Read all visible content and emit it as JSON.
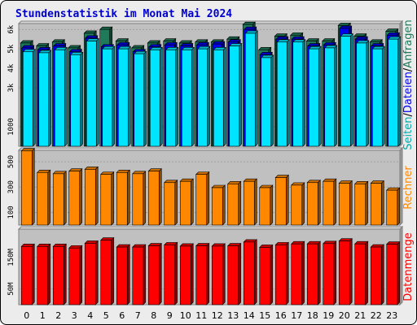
{
  "title": "Stundenstatistik im Monat Mai 2024",
  "colors": {
    "title": "#0000cc",
    "plot_bg": "#c0c0c0",
    "seiten": "#1f7a5a",
    "dateien": "#0000ee",
    "anfragen": "#00e5ff",
    "rechner": "#ff8800",
    "datenmenge": "#ff0000"
  },
  "chart_data": [
    {
      "type": "bar",
      "title": "",
      "x": [
        0,
        1,
        2,
        3,
        4,
        5,
        6,
        7,
        8,
        9,
        10,
        11,
        12,
        13,
        14,
        15,
        16,
        17,
        18,
        19,
        20,
        21,
        22,
        23
      ],
      "ylim": [
        0,
        6300
      ],
      "yticks": [
        1000,
        3000,
        4000,
        5000,
        6000
      ],
      "ytick_labels": [
        "1000",
        "3k",
        "4k",
        "5k",
        "6k"
      ],
      "ylabel_parts": [
        {
          "text": "Seiten",
          "color": "#00aaaa"
        },
        {
          "text": "/",
          "color": "#000000"
        },
        {
          "text": "Dateien",
          "color": "#0000ee"
        },
        {
          "text": "/",
          "color": "#000000"
        },
        {
          "text": "Anfragen",
          "color": "#1f7a5a"
        }
      ],
      "series": [
        {
          "name": "Seiten",
          "values": [
            5300,
            5150,
            5350,
            5050,
            5800,
            6000,
            5400,
            5050,
            5300,
            5400,
            5300,
            5350,
            5350,
            5500,
            6250,
            4950,
            5650,
            5700,
            5400,
            5400,
            6200,
            5650,
            5350,
            5900
          ]
        },
        {
          "name": "Dateien",
          "values": [
            5050,
            4950,
            5150,
            4850,
            5550,
            5100,
            5200,
            4850,
            5100,
            5200,
            5150,
            5200,
            5250,
            5350,
            6000,
            4700,
            5500,
            5500,
            5150,
            5200,
            6050,
            5500,
            5150,
            5700
          ]
        },
        {
          "name": "Anfragen",
          "values": [
            4850,
            4800,
            4950,
            4700,
            5400,
            5000,
            5000,
            4750,
            4950,
            4950,
            4950,
            5000,
            4950,
            5150,
            5800,
            4550,
            5350,
            5350,
            5000,
            5050,
            5650,
            5300,
            5000,
            5500
          ]
        }
      ]
    },
    {
      "type": "bar",
      "title": "",
      "x": [
        0,
        1,
        2,
        3,
        4,
        5,
        6,
        7,
        8,
        9,
        10,
        11,
        12,
        13,
        14,
        15,
        16,
        17,
        18,
        19,
        20,
        21,
        22,
        23
      ],
      "ylim": [
        0,
        590
      ],
      "yticks": [
        100,
        300,
        500
      ],
      "ytick_labels": [
        "100",
        "300",
        "500"
      ],
      "ylabel": "Rechner",
      "series": [
        {
          "name": "Rechner",
          "values": [
            585,
            415,
            405,
            425,
            440,
            400,
            415,
            405,
            425,
            335,
            345,
            400,
            295,
            325,
            345,
            295,
            375,
            315,
            335,
            345,
            330,
            325,
            330,
            275
          ]
        }
      ]
    },
    {
      "type": "bar",
      "title": "",
      "x": [
        0,
        1,
        2,
        3,
        4,
        5,
        6,
        7,
        8,
        9,
        10,
        11,
        12,
        13,
        14,
        15,
        16,
        17,
        18,
        19,
        20,
        21,
        22,
        23
      ],
      "ylim": [
        0,
        240
      ],
      "yticks": [
        50,
        150
      ],
      "ytick_labels": [
        "50M",
        "150M"
      ],
      "ylabel": "Datenmenge",
      "series": [
        {
          "name": "Datenmenge",
          "values": [
            185,
            185,
            185,
            180,
            195,
            205,
            183,
            183,
            187,
            190,
            186,
            187,
            186,
            187,
            199,
            182,
            190,
            193,
            193,
            194,
            202,
            193,
            183,
            192
          ]
        }
      ]
    }
  ]
}
